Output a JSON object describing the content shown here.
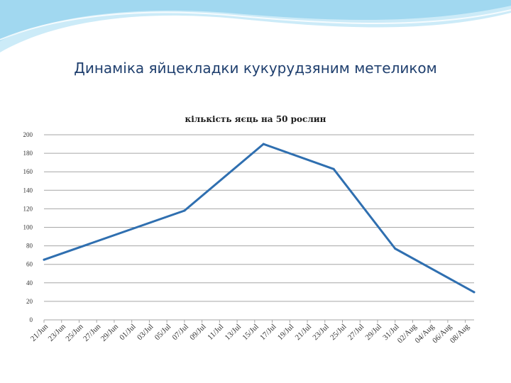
{
  "slide": {
    "title": "Динаміка яйцекладки кукурудзяним метеликом"
  },
  "colors": {
    "line": "#2f6fb0",
    "grid": "#a6a6a6",
    "swoosh": "#9fd6ef"
  },
  "chart_data": {
    "type": "line",
    "title": "кількість яєць на 50 рослин",
    "xlabel": "",
    "ylabel": "",
    "ylim": [
      0,
      200
    ],
    "yticks": [
      0,
      20,
      40,
      60,
      80,
      100,
      120,
      140,
      160,
      180,
      200
    ],
    "grid": true,
    "legend": "none",
    "x_tick_labels": [
      "21/Jun",
      "23/Jun",
      "25/Jun",
      "27/Jun",
      "29/Jun",
      "01/Jul",
      "03/Jul",
      "05/Jul",
      "07/Jul",
      "09/Jul",
      "11/Jul",
      "13/Jul",
      "15/Jul",
      "17/Jul",
      "19/Jul",
      "21/Jul",
      "23/Jul",
      "25/Jul",
      "27/Jul",
      "29/Jul",
      "31/Jul",
      "02/Aug",
      "04/Aug",
      "06/Aug",
      "08/Aug"
    ],
    "x_range": [
      "2012-06-21",
      "2012-08-09"
    ],
    "series": [
      {
        "x": [
          "2012-06-21",
          "2012-07-07",
          "2012-07-16",
          "2012-07-24",
          "2012-07-31",
          "2012-08-09"
        ],
        "y": [
          65,
          118,
          190,
          163,
          77,
          30
        ]
      }
    ]
  }
}
